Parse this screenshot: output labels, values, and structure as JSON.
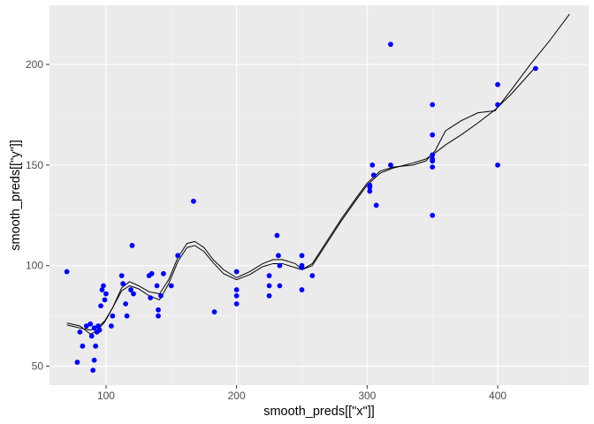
{
  "chart_data": {
    "type": "scatter",
    "title": "",
    "xlabel": "smooth_preds[[\"x\"]]",
    "ylabel": "smooth_preds[[\"y\"]]",
    "xlim": [
      56.7,
      469.7
    ],
    "ylim": [
      40.6,
      229.4
    ],
    "x_ticks": [
      100,
      200,
      300,
      400
    ],
    "x_tick_labels": [
      "100",
      "200",
      "300",
      "400"
    ],
    "y_ticks": [
      50,
      100,
      150,
      200
    ],
    "y_tick_labels": [
      "50",
      "100",
      "150",
      "200"
    ],
    "grid": true,
    "legend": "none",
    "colors": {
      "panel_background": "#ebebeb",
      "grid_major": "#ffffff",
      "grid_minor": "#f5f5f5",
      "point": "#0000ff",
      "line": "#000000",
      "tick_label": "#4d4d4d",
      "axis_title": "#000000"
    },
    "points": [
      [
        70,
        97
      ],
      [
        78,
        52
      ],
      [
        80,
        67
      ],
      [
        82,
        60
      ],
      [
        85,
        70
      ],
      [
        88,
        71
      ],
      [
        89,
        65
      ],
      [
        90,
        48
      ],
      [
        91,
        53
      ],
      [
        91,
        69
      ],
      [
        92,
        60
      ],
      [
        93,
        67
      ],
      [
        94,
        70
      ],
      [
        95,
        68
      ],
      [
        96,
        80
      ],
      [
        97,
        88
      ],
      [
        98,
        90
      ],
      [
        99,
        83
      ],
      [
        100,
        86
      ],
      [
        104,
        70
      ],
      [
        105,
        75
      ],
      [
        112,
        95
      ],
      [
        113,
        91
      ],
      [
        115,
        81
      ],
      [
        116,
        75
      ],
      [
        119,
        88
      ],
      [
        120,
        110
      ],
      [
        121,
        86
      ],
      [
        133,
        95
      ],
      [
        134,
        84
      ],
      [
        135,
        96
      ],
      [
        139,
        90
      ],
      [
        140,
        75
      ],
      [
        140,
        78
      ],
      [
        142,
        85
      ],
      [
        144,
        96
      ],
      [
        150,
        90
      ],
      [
        155,
        105
      ],
      [
        167,
        132
      ],
      [
        183,
        77
      ],
      [
        200,
        97
      ],
      [
        200,
        88
      ],
      [
        200,
        85
      ],
      [
        200,
        81
      ],
      [
        225,
        95
      ],
      [
        225,
        90
      ],
      [
        225,
        85
      ],
      [
        231,
        115
      ],
      [
        232,
        105
      ],
      [
        233,
        90
      ],
      [
        233,
        100
      ],
      [
        250,
        105
      ],
      [
        250,
        99
      ],
      [
        250,
        100
      ],
      [
        250,
        88
      ],
      [
        258,
        95
      ],
      [
        302,
        140
      ],
      [
        302,
        137
      ],
      [
        302,
        139
      ],
      [
        304,
        150
      ],
      [
        305,
        145
      ],
      [
        307,
        130
      ],
      [
        318,
        150
      ],
      [
        318,
        210
      ],
      [
        350,
        180
      ],
      [
        350,
        165
      ],
      [
        350,
        155
      ],
      [
        350,
        153
      ],
      [
        350,
        152
      ],
      [
        350,
        149
      ],
      [
        350,
        125
      ],
      [
        400,
        190
      ],
      [
        400,
        180
      ],
      [
        400,
        150
      ],
      [
        429,
        198
      ]
    ],
    "series": [
      {
        "type": "line",
        "points": [
          [
            70,
            71.5
          ],
          [
            80,
            70
          ],
          [
            88,
            66
          ],
          [
            93,
            67.5
          ],
          [
            99,
            72
          ],
          [
            105,
            79
          ],
          [
            112,
            89
          ],
          [
            118,
            92
          ],
          [
            125,
            90
          ],
          [
            133,
            87
          ],
          [
            141,
            86
          ],
          [
            148,
            93
          ],
          [
            155,
            104
          ],
          [
            162,
            111
          ],
          [
            168,
            112
          ],
          [
            175,
            109
          ],
          [
            182,
            103
          ],
          [
            190,
            98
          ],
          [
            200,
            94
          ],
          [
            210,
            97
          ],
          [
            220,
            101
          ],
          [
            228,
            103
          ],
          [
            235,
            103
          ],
          [
            245,
            101
          ],
          [
            250,
            98
          ],
          [
            258,
            101
          ],
          [
            270,
            113
          ],
          [
            280,
            123
          ],
          [
            292,
            134
          ],
          [
            300,
            141
          ],
          [
            310,
            147
          ],
          [
            320,
            149
          ],
          [
            335,
            150
          ],
          [
            345,
            152
          ],
          [
            352,
            157
          ],
          [
            360,
            167
          ],
          [
            372,
            172
          ],
          [
            385,
            176
          ],
          [
            398,
            177
          ],
          [
            410,
            187
          ],
          [
            425,
            200
          ],
          [
            440,
            212
          ],
          [
            455,
            225
          ]
        ]
      },
      {
        "type": "line",
        "points": [
          [
            70,
            70.5
          ],
          [
            80,
            69
          ],
          [
            88,
            68
          ],
          [
            93,
            69
          ],
          [
            99,
            72.5
          ],
          [
            105,
            79
          ],
          [
            112,
            87.5
          ],
          [
            118,
            90
          ],
          [
            125,
            88.5
          ],
          [
            133,
            85
          ],
          [
            141,
            83
          ],
          [
            148,
            91
          ],
          [
            155,
            102
          ],
          [
            162,
            109
          ],
          [
            168,
            110
          ],
          [
            175,
            107
          ],
          [
            182,
            101.5
          ],
          [
            190,
            96
          ],
          [
            200,
            93
          ],
          [
            210,
            95.5
          ],
          [
            220,
            99.5
          ],
          [
            228,
            101
          ],
          [
            235,
            101
          ],
          [
            245,
            99
          ],
          [
            250,
            98
          ],
          [
            258,
            100
          ],
          [
            270,
            112
          ],
          [
            280,
            122
          ],
          [
            292,
            133
          ],
          [
            300,
            140
          ],
          [
            310,
            146
          ],
          [
            320,
            148.5
          ],
          [
            335,
            151
          ],
          [
            345,
            153
          ],
          [
            352,
            156
          ],
          [
            360,
            160
          ],
          [
            372,
            165
          ],
          [
            385,
            171
          ],
          [
            398,
            177.5
          ],
          [
            410,
            185
          ],
          [
            428,
            198
          ]
        ]
      }
    ]
  }
}
